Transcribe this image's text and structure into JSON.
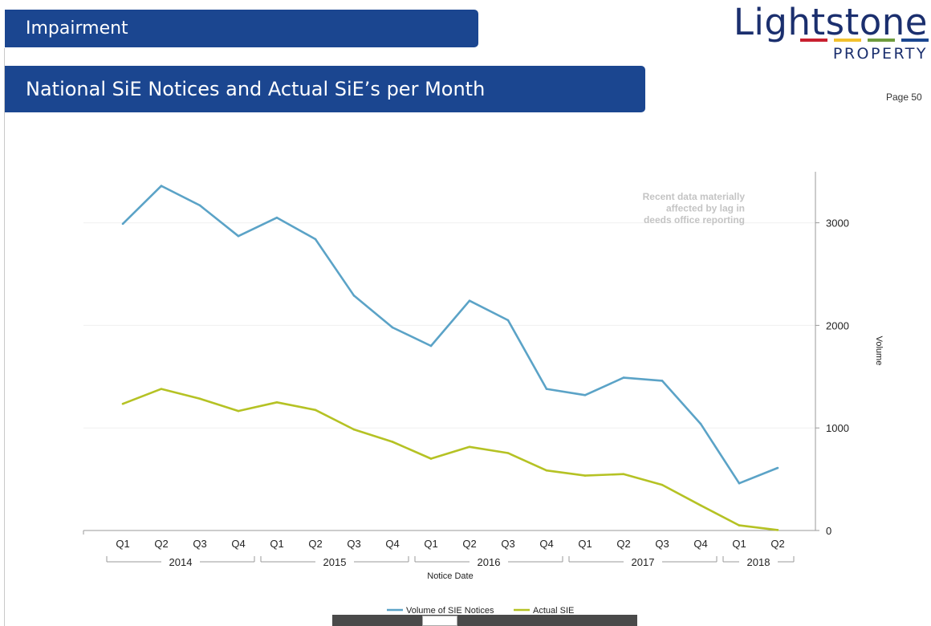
{
  "header": {
    "section": "Impairment",
    "title": "National SiE Notices and Actual SiE’s per Month",
    "page_label": "Page 50"
  },
  "logo": {
    "word": "Lightstone",
    "sub": "PROPERTY",
    "stripe_colors": [
      "#c8202f",
      "#f2c12e",
      "#6e9b3d",
      "#1b4690"
    ]
  },
  "chart_data": {
    "type": "line",
    "categories": [
      "Q1",
      "Q2",
      "Q3",
      "Q4",
      "Q1",
      "Q2",
      "Q3",
      "Q4",
      "Q1",
      "Q2",
      "Q3",
      "Q4",
      "Q1",
      "Q2",
      "Q3",
      "Q4",
      "Q1",
      "Q2"
    ],
    "years": [
      {
        "label": "2014",
        "start": 0,
        "end": 3
      },
      {
        "label": "2015",
        "start": 4,
        "end": 7
      },
      {
        "label": "2016",
        "start": 8,
        "end": 11
      },
      {
        "label": "2017",
        "start": 12,
        "end": 15
      },
      {
        "label": "2018",
        "start": 16,
        "end": 17
      }
    ],
    "series": [
      {
        "name": "Volume of SIE Notices",
        "color": "#5ba3c7",
        "values": [
          2990,
          3360,
          3170,
          2870,
          3050,
          2840,
          2290,
          1980,
          1800,
          2240,
          2050,
          1380,
          1320,
          1490,
          1460,
          1040,
          460,
          610
        ]
      },
      {
        "name": "Actual SIE",
        "color": "#b5c224",
        "values": [
          1235,
          1380,
          1285,
          1165,
          1250,
          1175,
          985,
          865,
          700,
          815,
          755,
          585,
          535,
          550,
          445,
          245,
          50,
          5
        ]
      }
    ],
    "xlabel": "Notice Date",
    "ylabel": "Volume",
    "ylim": [
      0,
      3500
    ],
    "yticks": [
      0,
      1000,
      2000,
      3000
    ],
    "grid": true,
    "legend": "bottom-center",
    "annotation": [
      "Recent data materially",
      "affected by lag in",
      "deeds office reporting"
    ]
  }
}
